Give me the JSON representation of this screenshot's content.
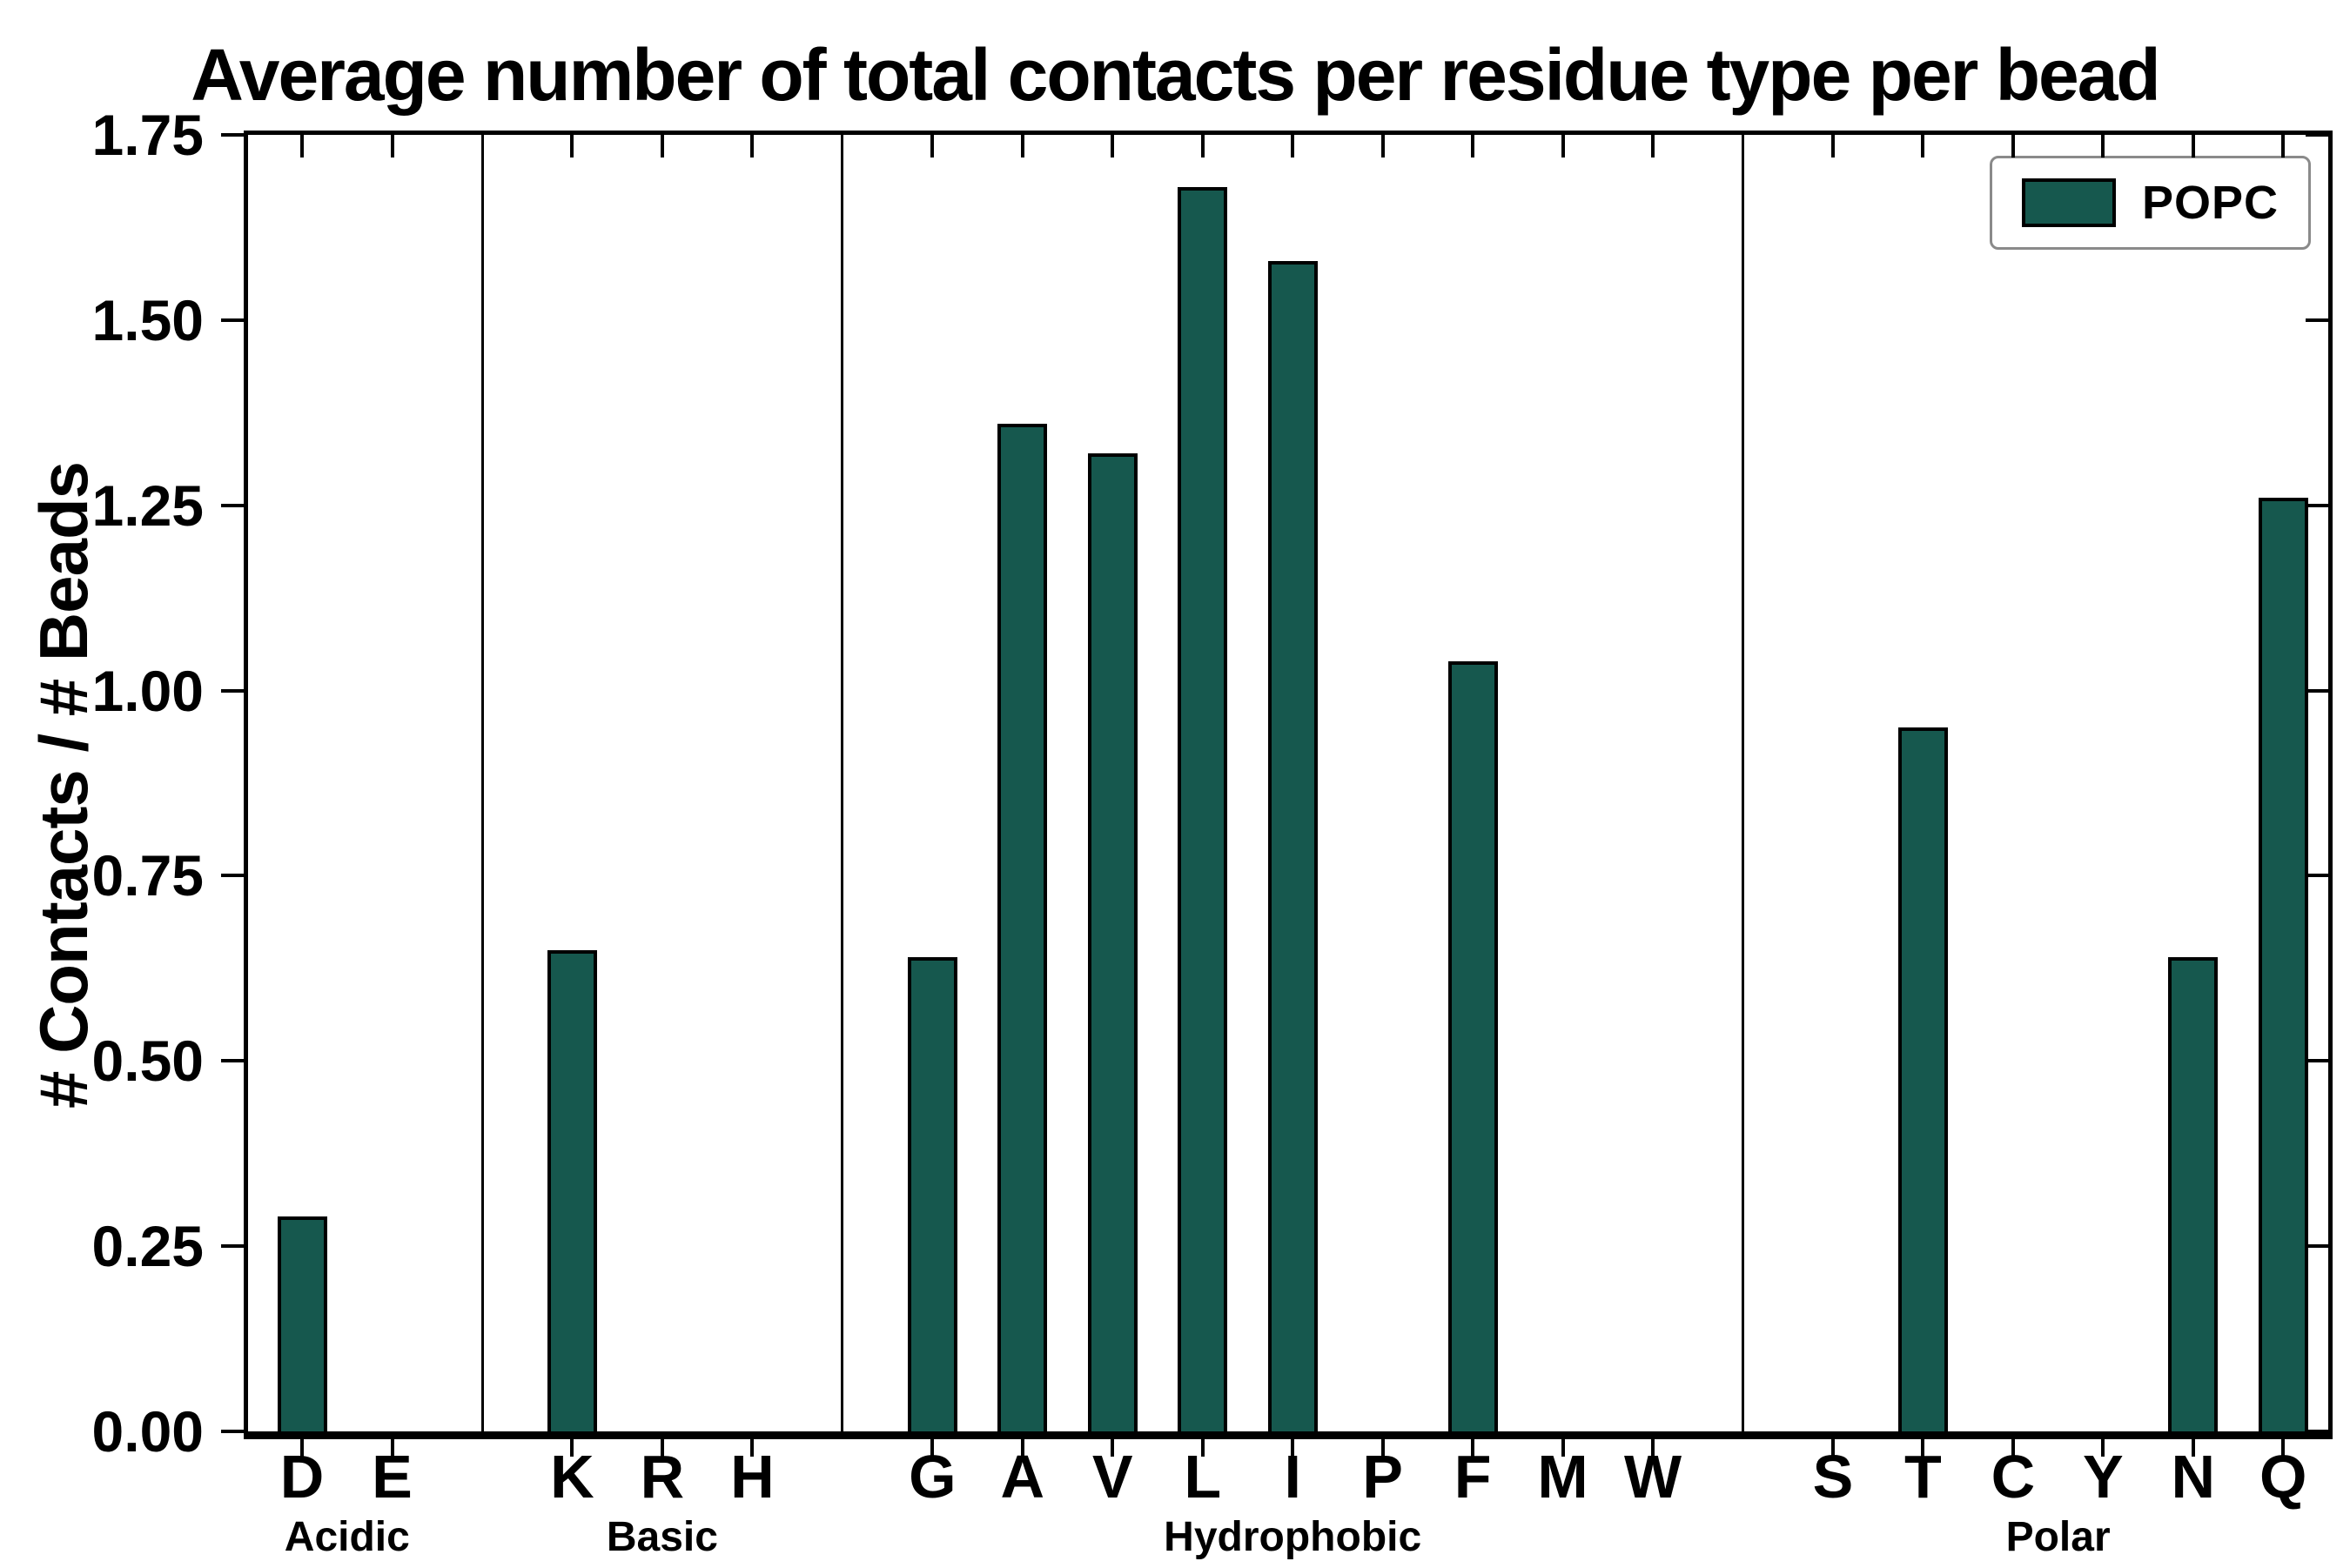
{
  "title": "Average number of total contacts per residue type per bead",
  "ylabel": "# Contacts / # Beads",
  "legend": {
    "label": "POPC"
  },
  "colors": {
    "bar_fill": "#16584e",
    "bar_edge": "#000000",
    "axis": "#000000",
    "legend_border": "#8a8a8a"
  },
  "chart_data": {
    "type": "bar",
    "title": "Average number of total contacts per residue type per bead",
    "xlabel": "",
    "ylabel": "# Contacts / # Beads",
    "ylim": [
      0,
      1.75
    ],
    "ytick_step": 0.25,
    "yticks": [
      "0.00",
      "0.25",
      "0.50",
      "0.75",
      "1.00",
      "1.25",
      "1.50",
      "1.75"
    ],
    "grid": false,
    "legend_position": "upper right",
    "series_name": "POPC",
    "groups": [
      {
        "label": "Acidic",
        "categories": [
          "D",
          "E"
        ],
        "values": [
          0.29,
          0.0
        ]
      },
      {
        "label": "Basic",
        "categories": [
          "K",
          "R",
          "H"
        ],
        "values": [
          0.65,
          0.0,
          0.0
        ]
      },
      {
        "label": "Hydrophobic",
        "categories": [
          "G",
          "A",
          "V",
          "L",
          "I",
          "P",
          "F",
          "M",
          "W"
        ],
        "values": [
          0.64,
          1.36,
          1.32,
          1.68,
          1.58,
          0.0,
          1.04,
          0.0,
          0.0
        ]
      },
      {
        "label": "Polar",
        "categories": [
          "S",
          "T",
          "C",
          "Y",
          "N",
          "Q"
        ],
        "values": [
          0.0,
          0.95,
          0.0,
          0.0,
          0.64,
          1.26
        ]
      }
    ]
  }
}
